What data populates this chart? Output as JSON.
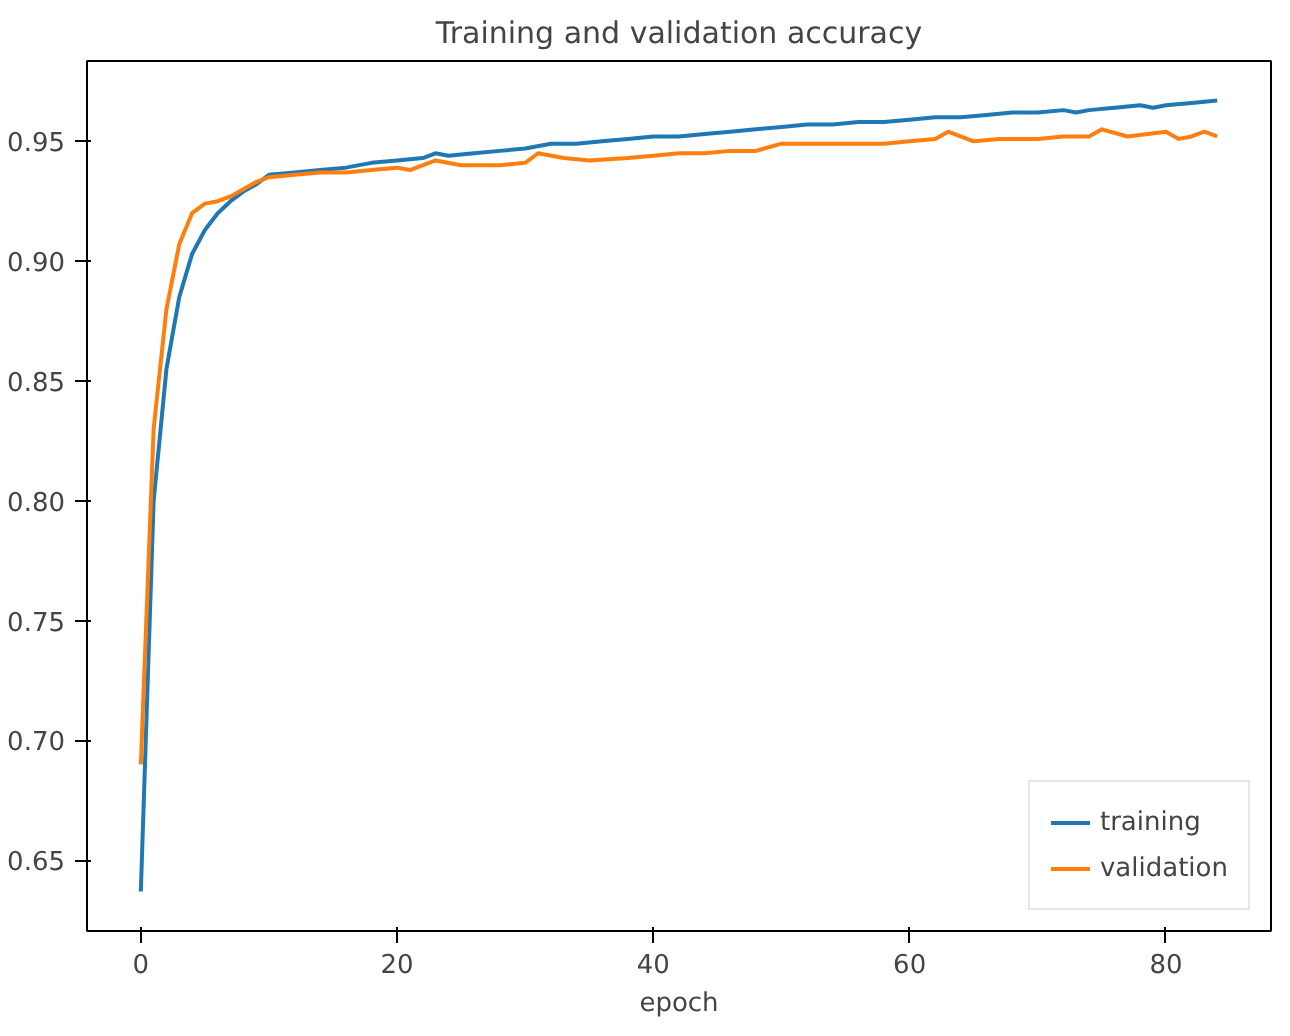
{
  "chart_data": {
    "type": "line",
    "title": "Training and validation accuracy",
    "xlabel": "epoch",
    "xlim": [
      -4.2,
      88.2
    ],
    "ylim": [
      0.6205,
      0.9835
    ],
    "xticks": [
      0,
      20,
      40,
      60,
      80
    ],
    "yticks": [
      0.65,
      {
        "value": 0.7,
        "label": "0.70"
      },
      0.75,
      {
        "value": 0.8,
        "label": "0.80"
      },
      0.85,
      {
        "value": 0.9,
        "label": "0.90"
      },
      0.95
    ],
    "grid": false,
    "legend": "bottom right",
    "series": [
      {
        "name": "training",
        "color": "#1f77b4",
        "x": [
          0,
          1,
          2,
          3,
          4,
          5,
          6,
          7,
          8,
          9,
          10,
          12,
          14,
          16,
          18,
          20,
          22,
          23,
          24,
          26,
          28,
          30,
          32,
          34,
          36,
          38,
          40,
          42,
          44,
          46,
          48,
          50,
          52,
          54,
          56,
          58,
          60,
          62,
          64,
          66,
          68,
          70,
          72,
          73,
          74,
          76,
          78,
          79,
          80,
          82,
          84
        ],
        "values": [
          0.637,
          0.8,
          0.855,
          0.885,
          0.903,
          0.913,
          0.92,
          0.925,
          0.929,
          0.932,
          0.936,
          0.937,
          0.938,
          0.939,
          0.941,
          0.942,
          0.943,
          0.945,
          0.944,
          0.945,
          0.946,
          0.947,
          0.949,
          0.949,
          0.95,
          0.951,
          0.952,
          0.952,
          0.953,
          0.954,
          0.955,
          0.956,
          0.957,
          0.957,
          0.958,
          0.958,
          0.959,
          0.96,
          0.96,
          0.961,
          0.962,
          0.962,
          0.963,
          0.962,
          0.963,
          0.964,
          0.965,
          0.964,
          0.965,
          0.966,
          0.967
        ]
      },
      {
        "name": "validation",
        "color": "#ff7f0e",
        "x": [
          0,
          1,
          2,
          3,
          4,
          5,
          6,
          7,
          8,
          9,
          10,
          12,
          14,
          16,
          18,
          20,
          21,
          23,
          25,
          28,
          30,
          31,
          33,
          35,
          38,
          40,
          42,
          44,
          46,
          48,
          50,
          52,
          55,
          58,
          60,
          62,
          63,
          65,
          67,
          70,
          72,
          74,
          75,
          77,
          80,
          81,
          82,
          83,
          84
        ],
        "values": [
          0.69,
          0.83,
          0.88,
          0.907,
          0.92,
          0.924,
          0.925,
          0.927,
          0.93,
          0.933,
          0.935,
          0.936,
          0.937,
          0.937,
          0.938,
          0.939,
          0.938,
          0.942,
          0.94,
          0.94,
          0.941,
          0.945,
          0.943,
          0.942,
          0.943,
          0.944,
          0.945,
          0.945,
          0.946,
          0.946,
          0.949,
          0.949,
          0.949,
          0.949,
          0.95,
          0.951,
          0.954,
          0.95,
          0.951,
          0.951,
          0.952,
          0.952,
          0.955,
          0.952,
          0.954,
          0.951,
          0.952,
          0.954,
          0.952
        ]
      }
    ]
  }
}
